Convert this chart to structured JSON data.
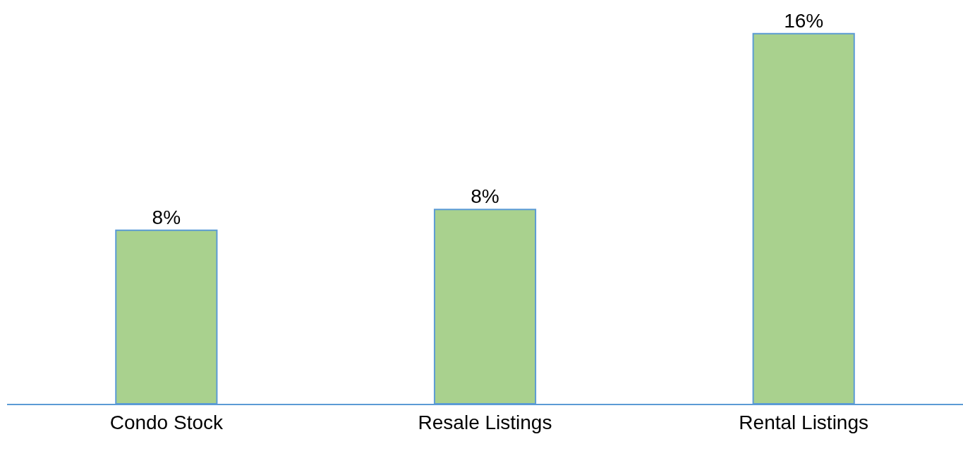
{
  "chart_data": {
    "type": "bar",
    "categories": [
      "Condo Stock",
      "Resale Listings",
      "Rental Listings"
    ],
    "values": [
      7.5,
      8.4,
      16
    ],
    "value_labels": [
      "8%",
      "8%",
      "16%"
    ],
    "color": "#a9d18e"
  }
}
